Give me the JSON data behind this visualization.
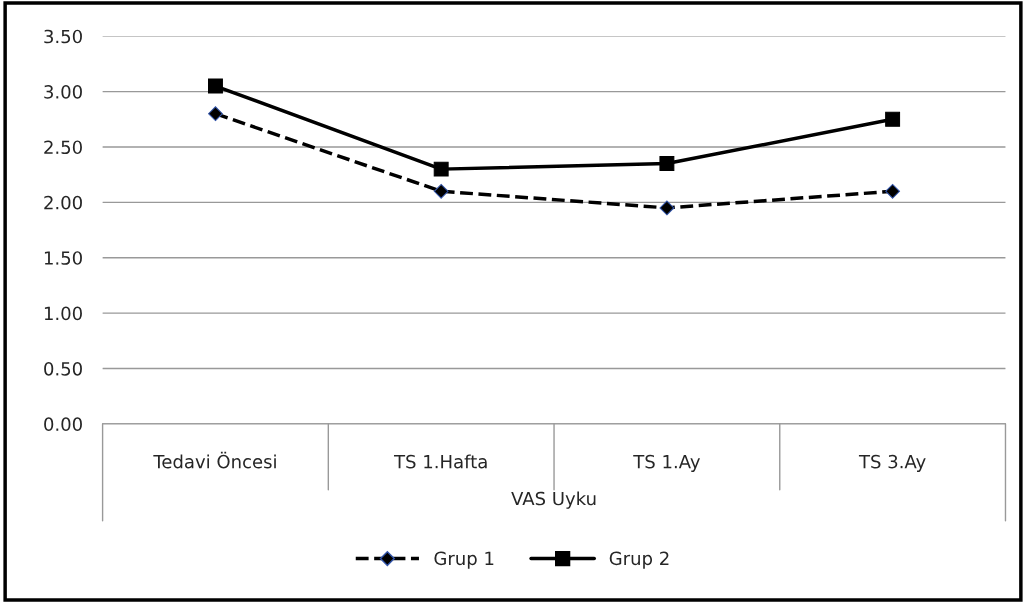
{
  "chart_data": {
    "type": "line",
    "xlabel": "VAS Uyku",
    "categories": [
      "Tedavi Öncesi",
      "TS 1.Hafta",
      "TS 1.Ay",
      "TS 3.Ay"
    ],
    "series": [
      {
        "name": "Grup 1",
        "color": "#000000",
        "values": [
          2.8,
          2.1,
          1.95,
          2.1
        ],
        "marker": "diamond",
        "line_style": "dashed"
      },
      {
        "name": "Grup 2",
        "color": "#000000",
        "values": [
          3.05,
          2.3,
          2.35,
          2.75
        ],
        "marker": "square",
        "line_style": "solid"
      }
    ],
    "ylim": [
      0,
      3.5
    ],
    "yticks": [
      {
        "value": 0,
        "label": "0.00"
      },
      {
        "value": 0.5,
        "label": "0.50"
      },
      {
        "value": 1,
        "label": "1.00"
      },
      {
        "value": 1.5,
        "label": "1.50"
      },
      {
        "value": 2,
        "label": "2.00"
      },
      {
        "value": 2.5,
        "label": "2.50"
      },
      {
        "value": 3,
        "label": "3.00"
      },
      {
        "value": 3.5,
        "label": "3.50"
      }
    ],
    "grid": "y",
    "legend": "bottom"
  }
}
